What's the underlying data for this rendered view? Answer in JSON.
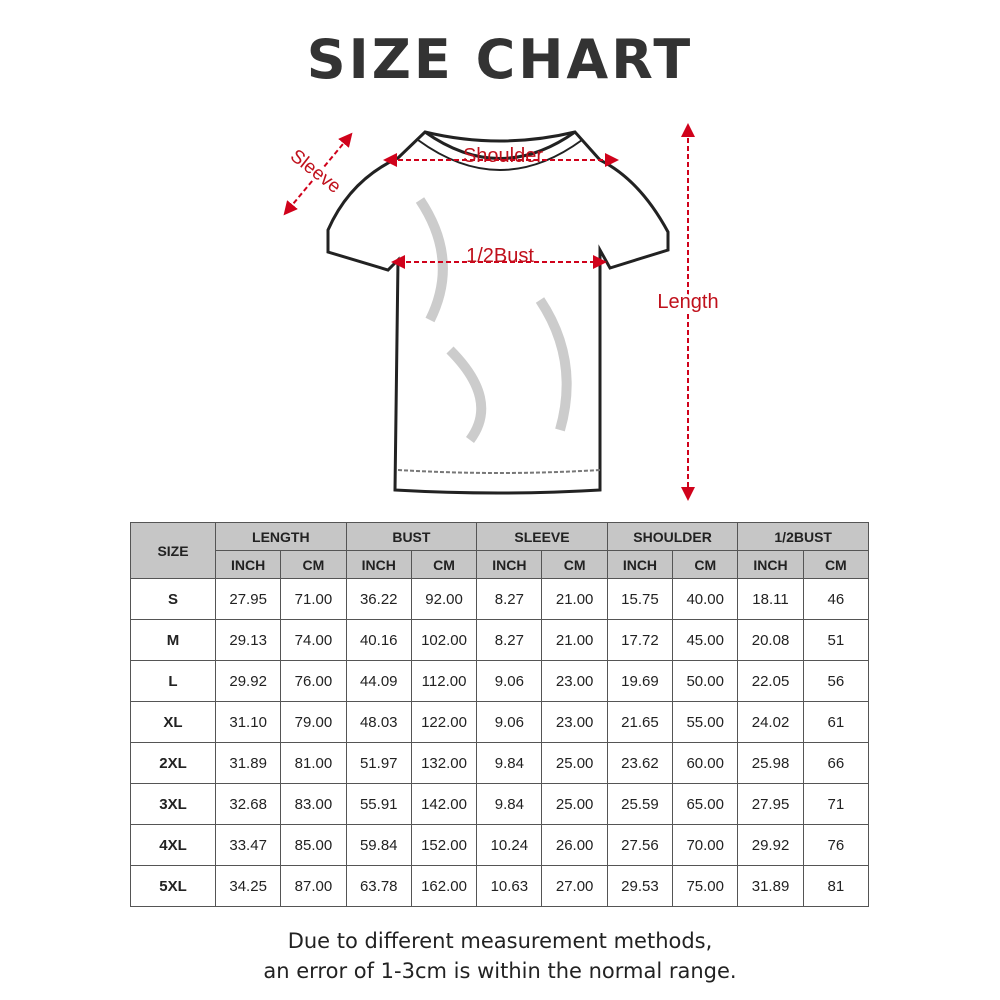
{
  "title": "SIZE CHART",
  "illustration": {
    "labels": {
      "sleeve": "Sleeve",
      "shoulder": "Shoulder",
      "half_bust": "1/2Bust",
      "length": "Length"
    },
    "arrow_color": "#d0021b"
  },
  "table": {
    "size_header": "SIZE",
    "groups": [
      "LENGTH",
      "BUST",
      "SLEEVE",
      "SHOULDER",
      "1/2BUST"
    ],
    "units": [
      "INCH",
      "CM"
    ],
    "rows": [
      {
        "size": "S",
        "values": [
          "27.95",
          "71.00",
          "36.22",
          "92.00",
          "8.27",
          "21.00",
          "15.75",
          "40.00",
          "18.11",
          "46"
        ]
      },
      {
        "size": "M",
        "values": [
          "29.13",
          "74.00",
          "40.16",
          "102.00",
          "8.27",
          "21.00",
          "17.72",
          "45.00",
          "20.08",
          "51"
        ]
      },
      {
        "size": "L",
        "values": [
          "29.92",
          "76.00",
          "44.09",
          "112.00",
          "9.06",
          "23.00",
          "19.69",
          "50.00",
          "22.05",
          "56"
        ]
      },
      {
        "size": "XL",
        "values": [
          "31.10",
          "79.00",
          "48.03",
          "122.00",
          "9.06",
          "23.00",
          "21.65",
          "55.00",
          "24.02",
          "61"
        ]
      },
      {
        "size": "2XL",
        "values": [
          "31.89",
          "81.00",
          "51.97",
          "132.00",
          "9.84",
          "25.00",
          "23.62",
          "60.00",
          "25.98",
          "66"
        ]
      },
      {
        "size": "3XL",
        "values": [
          "32.68",
          "83.00",
          "55.91",
          "142.00",
          "9.84",
          "25.00",
          "25.59",
          "65.00",
          "27.95",
          "71"
        ]
      },
      {
        "size": "4XL",
        "values": [
          "33.47",
          "85.00",
          "59.84",
          "152.00",
          "10.24",
          "26.00",
          "27.56",
          "70.00",
          "29.92",
          "76"
        ]
      },
      {
        "size": "5XL",
        "values": [
          "34.25",
          "87.00",
          "63.78",
          "162.00",
          "10.63",
          "27.00",
          "29.53",
          "75.00",
          "31.89",
          "81"
        ]
      }
    ]
  },
  "note": {
    "line1": "Due to different measurement methods,",
    "line2": "an error of 1-3cm is within the normal range."
  }
}
